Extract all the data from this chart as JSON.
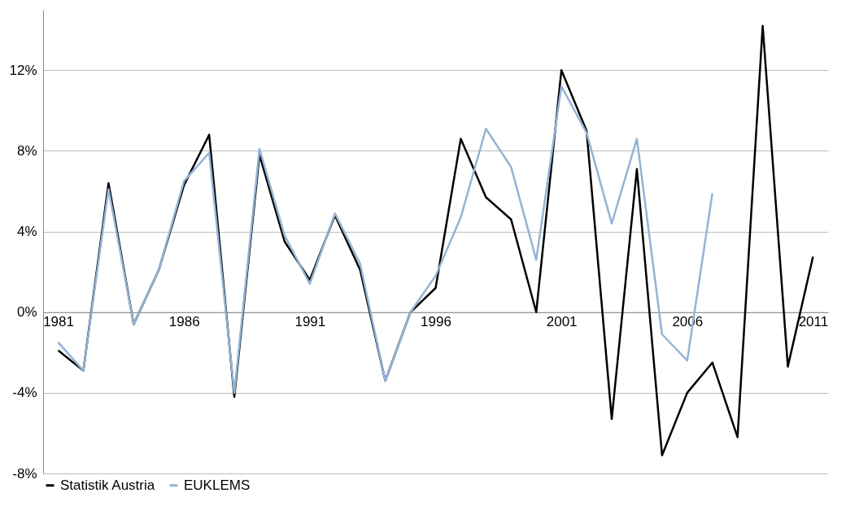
{
  "chart_data": {
    "type": "line",
    "x": [
      1981,
      1982,
      1983,
      1984,
      1985,
      1986,
      1987,
      1988,
      1989,
      1990,
      1991,
      1992,
      1993,
      1994,
      1995,
      1996,
      1997,
      1998,
      1999,
      2000,
      2001,
      2002,
      2003,
      2004,
      2005,
      2006,
      2007,
      2008,
      2009,
      2010,
      2011
    ],
    "series": [
      {
        "name": "Statistik Austria",
        "color": "#000000",
        "values": [
          -1.9,
          -2.9,
          6.4,
          -0.6,
          2.1,
          6.3,
          8.8,
          -4.2,
          7.8,
          3.5,
          1.6,
          4.8,
          2.1,
          -3.4,
          0,
          1.2,
          8.6,
          5.7,
          4.6,
          0,
          12.0,
          9.0,
          -5.3,
          7.1,
          -7.1,
          -4.0,
          -2.5,
          -6.2,
          14.2,
          -2.7,
          2.75
        ]
      },
      {
        "name": "EUKLEMS",
        "color": "#95b3d7",
        "values": [
          -1.5,
          -2.9,
          6.1,
          -0.6,
          2.1,
          6.5,
          7.9,
          -4.0,
          8.1,
          3.8,
          1.4,
          4.9,
          2.4,
          -3.4,
          0,
          1.8,
          4.7,
          9.1,
          7.2,
          2.6,
          11.2,
          8.9,
          4.4,
          8.6,
          -1.1,
          -2.4,
          5.9,
          null,
          null,
          null,
          null
        ]
      }
    ],
    "xlim": [
      1980.4,
      2011.6
    ],
    "xticks": [
      1981,
      1986,
      1991,
      1996,
      2001,
      2006,
      2011
    ],
    "ylim": [
      -8,
      15
    ],
    "yticks": [
      {
        "value": -8,
        "label": "-8%"
      },
      {
        "value": -4,
        "label": "-4%"
      },
      {
        "value": 0,
        "label": "0%"
      },
      {
        "value": 4,
        "label": "4%"
      },
      {
        "value": 8,
        "label": "8%"
      },
      {
        "value": 12,
        "label": "12%"
      }
    ],
    "grid": "y",
    "legend": "bottom",
    "marker": "none",
    "line_style": "solid"
  }
}
